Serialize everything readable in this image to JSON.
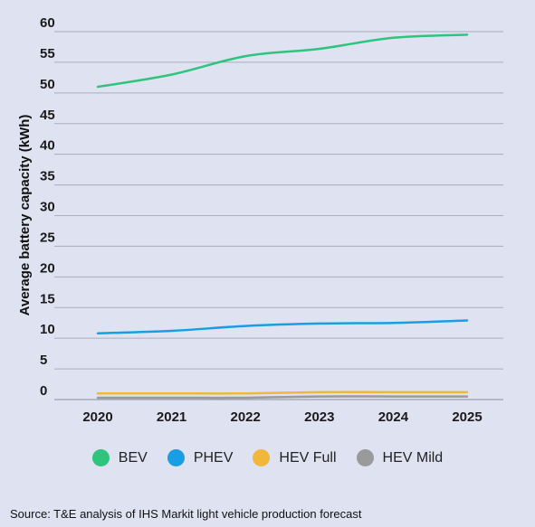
{
  "chart_data": {
    "type": "line",
    "x": [
      "2020",
      "2021",
      "2022",
      "2023",
      "2024",
      "2025"
    ],
    "ylabel": "Average battery capacity (kWh)",
    "ylim": [
      0,
      60
    ],
    "yticks": [
      0,
      5,
      10,
      15,
      20,
      25,
      30,
      35,
      40,
      45,
      50,
      55,
      60
    ],
    "grid": true,
    "legend_position": "bottom",
    "series": [
      {
        "name": "BEV",
        "color": "#2fc47e",
        "values": [
          51,
          53,
          56,
          57.2,
          59,
          59.5
        ]
      },
      {
        "name": "PHEV",
        "color": "#1a9ee3",
        "values": [
          10.8,
          11.2,
          12,
          12.4,
          12.5,
          12.9
        ]
      },
      {
        "name": "HEV Full",
        "color": "#f0b73a",
        "values": [
          1.0,
          1.0,
          1.0,
          1.2,
          1.2,
          1.2
        ]
      },
      {
        "name": "HEV Mild",
        "color": "#9a9a9a",
        "values": [
          0.3,
          0.3,
          0.3,
          0.5,
          0.5,
          0.5
        ]
      }
    ]
  },
  "source": "Source: T&E analysis of IHS Markit light vehicle production forecast"
}
